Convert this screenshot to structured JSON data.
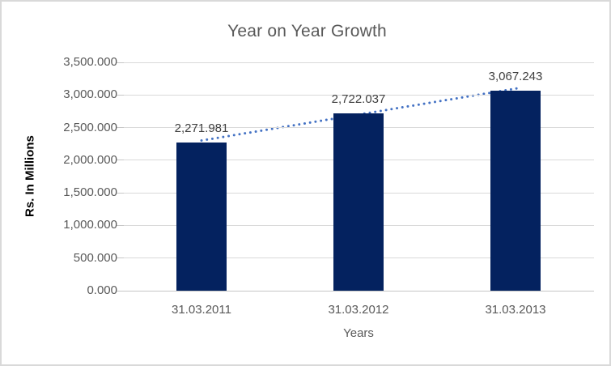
{
  "chart_data": {
    "type": "bar",
    "title": "Year on Year Growth",
    "categories": [
      "31.03.2011",
      "31.03.2012",
      "31.03.2013"
    ],
    "values": [
      2271.981,
      2722.037,
      3067.243
    ],
    "data_labels": [
      "2,271.981",
      "2,722.037",
      "3,067.243"
    ],
    "xlabel": "Years",
    "ylabel": "Rs. In Millions",
    "ylim": [
      0,
      3500
    ],
    "y_tick_interval": 500,
    "y_tick_labels": [
      "0.000",
      "500.000",
      "1,000.000",
      "1,500.000",
      "2,000.000",
      "2,500.000",
      "3,000.000",
      "3,500.000"
    ],
    "grid": true,
    "legend": "none",
    "trendline": {
      "type": "linear",
      "style": "dotted"
    },
    "colors": {
      "bar": "#04225F",
      "trendline": "#4472C4",
      "gridline": "#D9D9D9",
      "axis_line": "#C6C6C6",
      "title_text": "#595959",
      "tick_text": "#595959",
      "data_label_text": "#404040",
      "axis_title_text": "#000000",
      "frame_border": "#D9D9D9",
      "background": "#FFFFFF"
    }
  }
}
